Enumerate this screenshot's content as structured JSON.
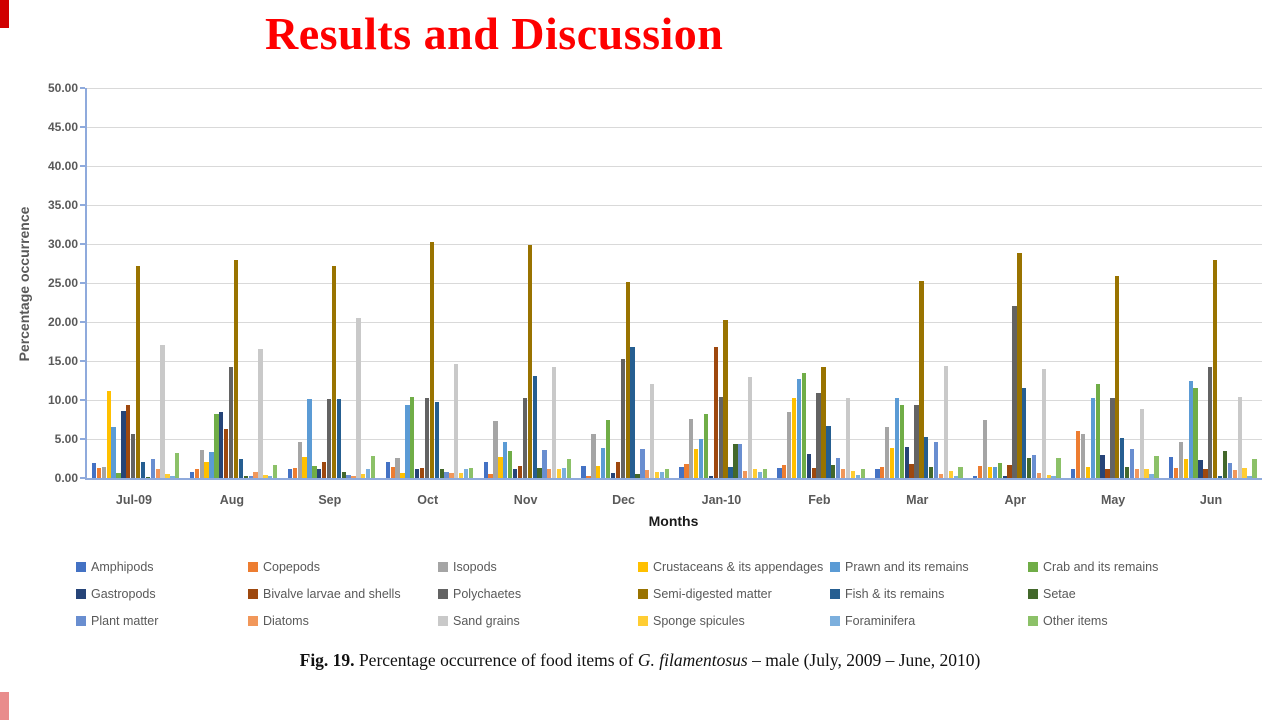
{
  "slide": {
    "title": "Results and Discussion",
    "title_color": "#FE0000",
    "accent_strip_top_color": "#D00000",
    "accent_strip_bottom_color": "#E98C8C"
  },
  "chart_data": {
    "type": "bar",
    "title": "",
    "xlabel": "Months",
    "ylabel": "Percentage occurrence",
    "ylim": [
      0,
      50
    ],
    "ytick_step": 5,
    "grid": true,
    "legend_position": "bottom",
    "axis_color": "#8FAADC",
    "gridline_color": "#D9D9D9",
    "categories": [
      "Jul-09",
      "Aug",
      "Sep",
      "Oct",
      "Nov",
      "Dec",
      "Jan-10",
      "Feb",
      "Mar",
      "Apr",
      "May",
      "Jun"
    ],
    "series": [
      {
        "name": "Amphipods",
        "color": "#4472C4",
        "values": [
          1.9,
          0.8,
          1.2,
          2.1,
          2.1,
          1.6,
          1.4,
          1.3,
          1.1,
          0.3,
          1.1,
          2.7
        ]
      },
      {
        "name": "Copepods",
        "color": "#ED7D31",
        "values": [
          1.3,
          1.2,
          1.3,
          1.4,
          0.5,
          0.3,
          1.8,
          1.7,
          1.4,
          1.5,
          6.0,
          1.3
        ]
      },
      {
        "name": "Isopods",
        "color": "#A5A5A5",
        "values": [
          1.4,
          3.6,
          4.6,
          2.6,
          7.3,
          5.6,
          7.6,
          8.5,
          6.6,
          7.5,
          5.7,
          4.6
        ]
      },
      {
        "name": "Crustaceans & its appendages",
        "color": "#FFC000",
        "values": [
          11.2,
          2.0,
          2.7,
          0.6,
          2.7,
          1.5,
          3.7,
          10.3,
          3.9,
          1.4,
          1.4,
          2.5
        ]
      },
      {
        "name": "Prawn and its remains",
        "color": "#5B9BD5",
        "values": [
          6.6,
          3.3,
          10.1,
          9.4,
          4.6,
          3.9,
          5.0,
          12.7,
          10.3,
          1.4,
          10.2,
          12.4
        ]
      },
      {
        "name": "Crab and its remains",
        "color": "#70AD47",
        "values": [
          0.6,
          8.2,
          1.6,
          10.4,
          3.5,
          7.5,
          8.2,
          13.4,
          9.3,
          1.9,
          12.1,
          11.5
        ]
      },
      {
        "name": "Gastropods",
        "color": "#264478",
        "values": [
          8.6,
          8.4,
          1.2,
          1.2,
          1.1,
          0.7,
          0.2,
          3.1,
          4.0,
          0.3,
          2.9,
          2.3
        ]
      },
      {
        "name": "Bivalve larvae and shells",
        "color": "#9E480E",
        "values": [
          9.4,
          6.3,
          2.1,
          1.3,
          1.6,
          2.0,
          16.8,
          1.3,
          1.8,
          1.7,
          1.1,
          1.1
        ]
      },
      {
        "name": "Polychaetes",
        "color": "#636363",
        "values": [
          5.6,
          14.2,
          10.1,
          10.2,
          10.3,
          15.2,
          10.4,
          10.9,
          9.4,
          22.0,
          10.2,
          14.2
        ]
      },
      {
        "name": "Semi-digested matter",
        "color": "#997300",
        "values": [
          27.2,
          28.0,
          27.2,
          30.3,
          29.9,
          25.1,
          20.3,
          14.2,
          25.2,
          28.8,
          25.9,
          28.0
        ]
      },
      {
        "name": "Fish & its remains",
        "color": "#255E91",
        "values": [
          2.1,
          2.4,
          10.1,
          9.8,
          13.1,
          16.8,
          1.4,
          6.7,
          5.3,
          11.5,
          5.1,
          0.2
        ]
      },
      {
        "name": "Setae",
        "color": "#43682B",
        "values": [
          0.1,
          0.3,
          0.8,
          1.2,
          1.3,
          0.5,
          4.3,
          1.7,
          1.4,
          2.6,
          1.4,
          3.4
        ]
      },
      {
        "name": "Plant matter",
        "color": "#698ED0",
        "values": [
          2.4,
          0.2,
          0.4,
          0.8,
          3.6,
          3.7,
          4.3,
          2.6,
          4.6,
          3.0,
          3.7,
          1.9
        ]
      },
      {
        "name": "Diatoms",
        "color": "#F1975A",
        "values": [
          1.1,
          0.8,
          0.3,
          0.7,
          1.1,
          1.0,
          0.9,
          1.1,
          0.5,
          0.6,
          1.1,
          1.0
        ]
      },
      {
        "name": "Sand grains",
        "color": "#C9C9C9",
        "values": [
          17.1,
          16.6,
          20.5,
          14.6,
          14.2,
          12.1,
          12.9,
          10.2,
          14.3,
          14.0,
          8.9,
          10.4
        ]
      },
      {
        "name": "Sponge spicules",
        "color": "#FFCD33",
        "values": [
          0.5,
          0.4,
          0.5,
          0.6,
          1.2,
          0.8,
          1.2,
          0.9,
          0.9,
          0.4,
          1.1,
          1.3
        ]
      },
      {
        "name": "Foraminifera",
        "color": "#7CAFDD",
        "values": [
          0.3,
          0.2,
          1.2,
          1.1,
          1.3,
          0.8,
          0.8,
          0.4,
          0.2,
          0.3,
          0.5,
          0.3
        ]
      },
      {
        "name": "Other items",
        "color": "#8CC168",
        "values": [
          3.2,
          1.7,
          2.8,
          1.3,
          2.5,
          1.1,
          1.2,
          1.1,
          1.4,
          2.6,
          2.8,
          2.5
        ]
      }
    ]
  },
  "caption": {
    "prefix": "Fig. 19.",
    "before_species": " Percentage occurrence of food items of ",
    "species": "G. filamentosus",
    "after_species": " – male (July, 2009 – June, 2010)"
  }
}
